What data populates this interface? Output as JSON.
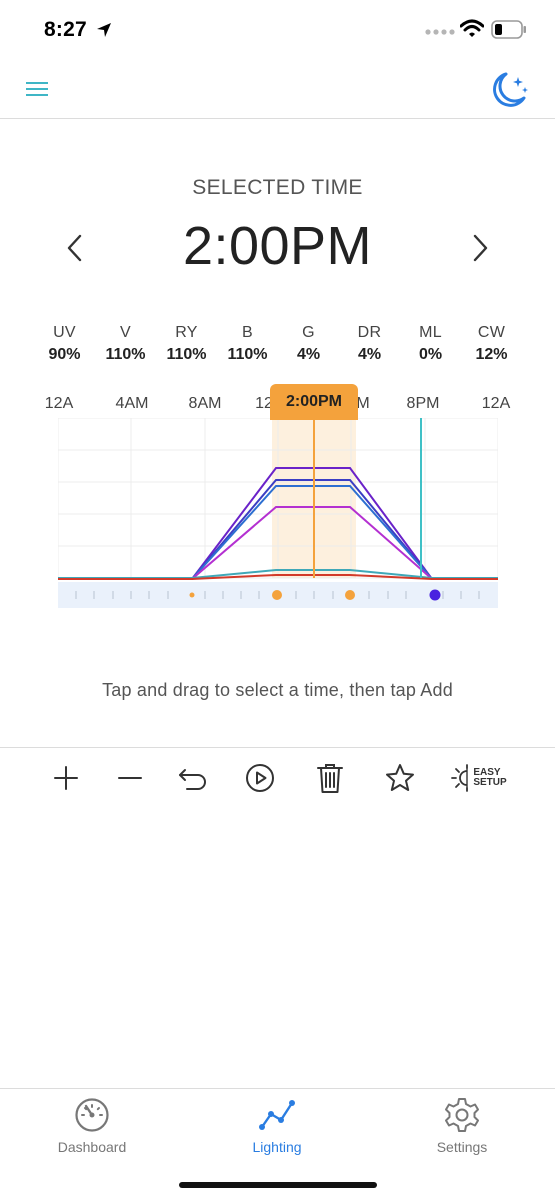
{
  "status_bar": {
    "time": "8:27"
  },
  "header": {
    "menu_icon": "hamburger-icon",
    "mode_icon": "moon-stars-icon",
    "accent_color": "#2a7de1"
  },
  "selected": {
    "label": "SELECTED TIME",
    "time": "2:00PM",
    "marker_label": "2:00PM"
  },
  "channels": [
    {
      "name": "UV",
      "value": "90%"
    },
    {
      "name": "V",
      "value": "110%"
    },
    {
      "name": "RY",
      "value": "110%"
    },
    {
      "name": "B",
      "value": "110%"
    },
    {
      "name": "G",
      "value": "4%"
    },
    {
      "name": "DR",
      "value": "4%"
    },
    {
      "name": "ML",
      "value": "0%"
    },
    {
      "name": "CW",
      "value": "12%"
    }
  ],
  "chart": {
    "hour_labels": [
      "12A",
      "4AM",
      "8AM",
      "12",
      "M",
      "8PM",
      "12A"
    ]
  },
  "hint": "Tap and drag to select a time, then tap Add",
  "toolbar": {
    "easy_setup_line1": "EASY",
    "easy_setup_line2": "SETUP"
  },
  "tabs": [
    {
      "label": "Dashboard",
      "icon": "gauge-icon"
    },
    {
      "label": "Lighting",
      "icon": "line-chart-icon",
      "active": true
    },
    {
      "label": "Settings",
      "icon": "gear-icon"
    }
  ]
}
